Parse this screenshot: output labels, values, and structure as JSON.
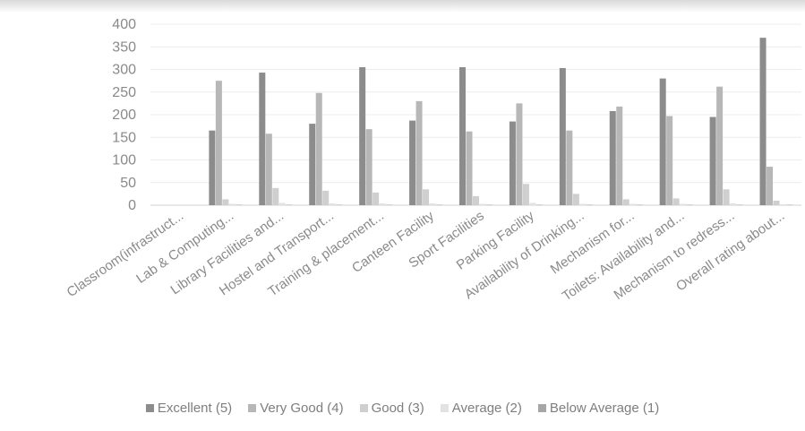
{
  "chart_data": {
    "type": "bar",
    "title": "",
    "xlabel": "",
    "ylabel": "",
    "ylim": [
      0,
      400
    ],
    "yticks": [
      0,
      50,
      100,
      150,
      200,
      250,
      300,
      350,
      400
    ],
    "grid": true,
    "legend_position": "bottom",
    "categories": [
      "Classroom(infrastruct...",
      "Lab & Computing...",
      "Library Facilities and...",
      "Hostel and Transport...",
      "Training & placement...",
      "Canteen Facility",
      "Sport Facilities",
      "Parking Facility",
      "Availability of Drinking...",
      "Mechanism for...",
      "Toilets: Availability and...",
      "Mechanism to redress...",
      "Overall rating about..."
    ],
    "series": [
      {
        "name": "Excellent (5)",
        "color": "#8c8c8c",
        "values": [
          0,
          165,
          293,
          180,
          305,
          187,
          305,
          185,
          303,
          208,
          280,
          195,
          370
        ]
      },
      {
        "name": "Very Good (4)",
        "color": "#b7b7b7",
        "values": [
          0,
          275,
          158,
          248,
          168,
          230,
          163,
          225,
          165,
          218,
          197,
          262,
          85
        ]
      },
      {
        "name": "Good  (3)",
        "color": "#cfcfcf",
        "values": [
          0,
          13,
          38,
          32,
          28,
          35,
          20,
          47,
          25,
          13,
          15,
          35,
          10
        ]
      },
      {
        "name": "Average (2)",
        "color": "#e2e2e2",
        "values": [
          0,
          3,
          5,
          4,
          4,
          4,
          3,
          5,
          3,
          3,
          3,
          4,
          2
        ]
      },
      {
        "name": "Below Average (1)",
        "color": "#a6a6a6",
        "values": [
          0,
          1,
          1,
          1,
          1,
          1,
          1,
          1,
          1,
          1,
          1,
          1,
          1
        ]
      }
    ]
  }
}
